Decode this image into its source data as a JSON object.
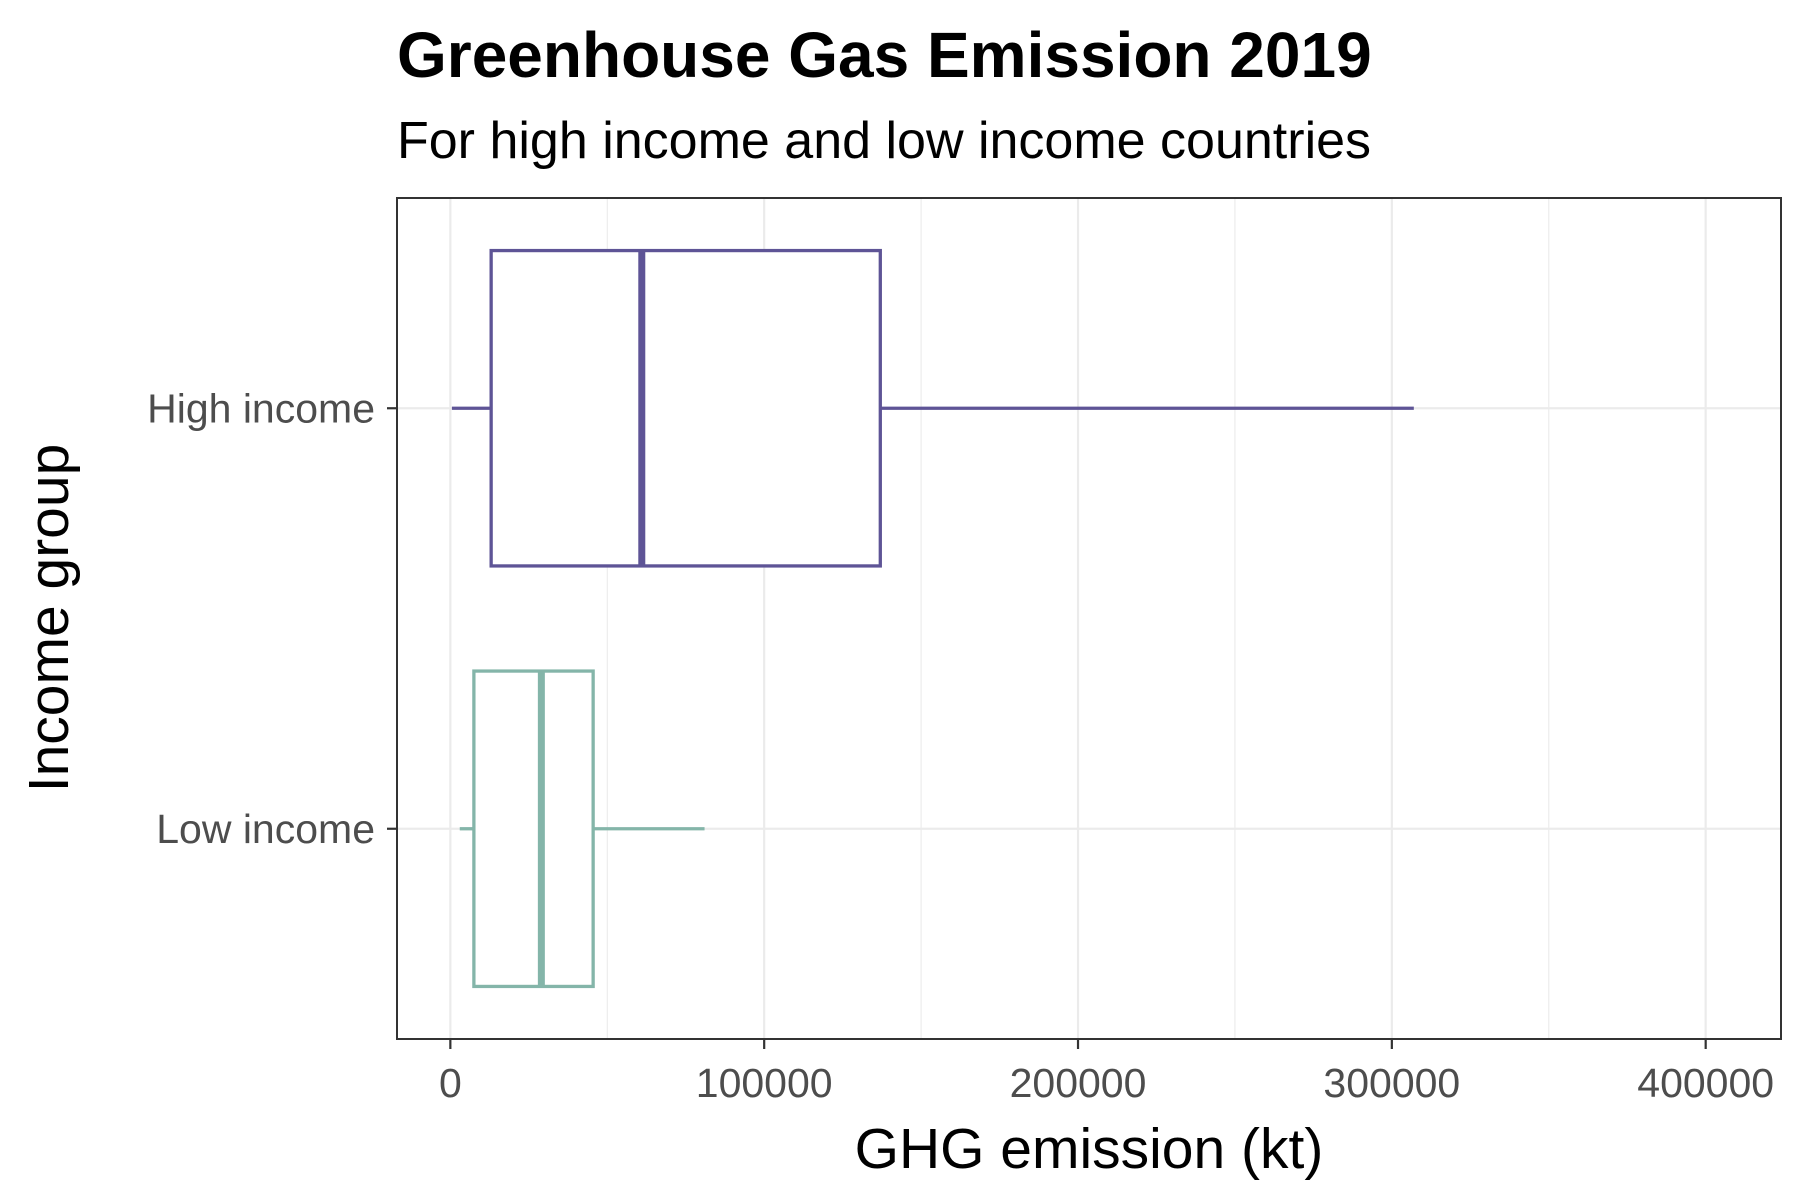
{
  "chart_data": {
    "type": "boxplot",
    "title": "Greenhouse Gas Emission 2019",
    "subtitle": "For high income and low income countries",
    "xlabel": "GHG emission (kt)",
    "ylabel": "Income group",
    "xlim": [
      -17000,
      424000
    ],
    "x_ticks": [
      0,
      100000,
      200000,
      300000,
      400000
    ],
    "x_tick_labels": [
      "0",
      "100000",
      "200000",
      "300000",
      "400000"
    ],
    "categories": [
      "High income",
      "Low income"
    ],
    "series": [
      {
        "category": "High income",
        "whisker_low": 500,
        "q1": 13000,
        "median": 61000,
        "q3": 137000,
        "whisker_high": 307000,
        "color": "#5e5496"
      },
      {
        "category": "Low income",
        "whisker_low": 3000,
        "q1": 7500,
        "median": 29000,
        "q3": 45500,
        "whisker_high": 81000,
        "color": "#84b5a9"
      }
    ],
    "grid": true,
    "legend": "none"
  }
}
